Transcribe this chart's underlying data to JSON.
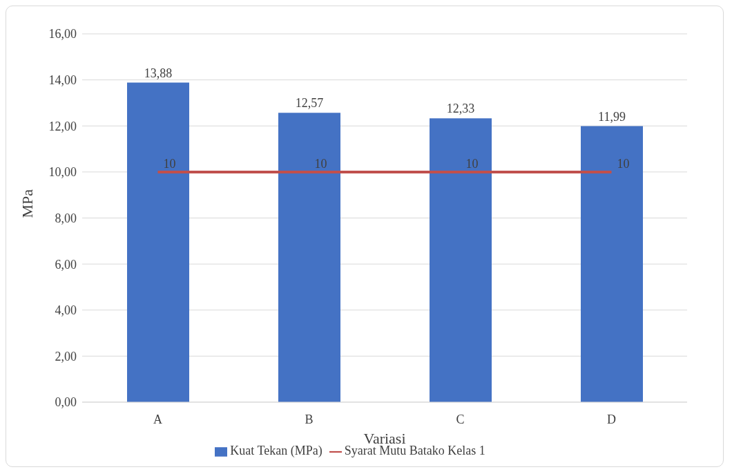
{
  "chart_data": {
    "type": "bar",
    "categories": [
      "A",
      "B",
      "C",
      "D"
    ],
    "series": [
      {
        "name": "Kuat Tekan (MPa)",
        "color": "#4472c4",
        "values": [
          13.88,
          12.57,
          12.33,
          11.99
        ],
        "value_labels": [
          "13,88",
          "12,57",
          "12,33",
          "11,99"
        ]
      },
      {
        "name": "Syarat Mutu Batako Kelas 1",
        "type": "line",
        "color": "#c0504d",
        "values": [
          10,
          10,
          10,
          10
        ],
        "value_labels": [
          "10",
          "10",
          "10",
          "10"
        ]
      }
    ],
    "xlabel": "Variasi",
    "ylabel": "MPa",
    "ylim": [
      0,
      16
    ],
    "yticks": [
      {
        "value": 0,
        "label": "0,00"
      },
      {
        "value": 2,
        "label": "2,00"
      },
      {
        "value": 4,
        "label": "4,00"
      },
      {
        "value": 6,
        "label": "6,00"
      },
      {
        "value": 8,
        "label": "8,00"
      },
      {
        "value": 10,
        "label": "10,00"
      },
      {
        "value": 12,
        "label": "12,00"
      },
      {
        "value": 14,
        "label": "14,00"
      },
      {
        "value": 16,
        "label": "16,00"
      }
    ],
    "grid": "y",
    "legend": "bottom",
    "marker": "none"
  }
}
